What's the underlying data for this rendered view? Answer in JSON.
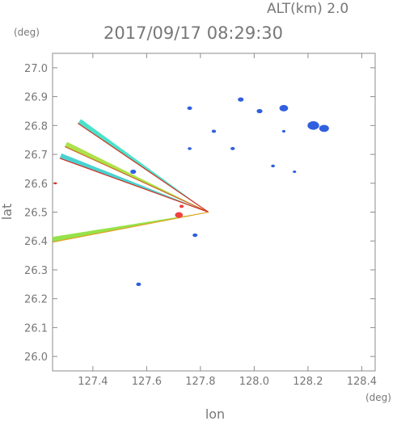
{
  "header": {
    "altitude": "ALT(km) 2.0",
    "timestamp": "2017/09/17 08:29:30",
    "y_unit": "(deg)",
    "x_unit": "(deg)"
  },
  "chart_data": {
    "type": "scatter",
    "xlabel": "lon",
    "ylabel": "lat",
    "xlim": [
      127.25,
      128.45
    ],
    "ylim": [
      25.95,
      27.05
    ],
    "x_ticks": [
      "127.4",
      "127.6",
      "127.8",
      "128.0",
      "128.2",
      "128.4"
    ],
    "x_tick_values": [
      127.4,
      127.6,
      127.8,
      128.0,
      128.2,
      128.4
    ],
    "y_ticks": [
      "27.0",
      "26.9",
      "26.8",
      "26.7",
      "26.6",
      "26.5",
      "26.4",
      "26.3",
      "26.2",
      "26.1",
      "26.0"
    ],
    "y_tick_values": [
      27.0,
      26.9,
      26.8,
      26.7,
      26.6,
      26.5,
      26.4,
      26.3,
      26.2,
      26.1,
      26.0
    ],
    "origin": {
      "lon": 127.83,
      "lat": 26.5
    },
    "beams": [
      {
        "lon": 127.35,
        "lat": 26.815,
        "color": "#40e0c8",
        "edge": "#d03020"
      },
      {
        "lon": 127.3,
        "lat": 26.735,
        "color": "#a8e040",
        "edge": "#d06020"
      },
      {
        "lon": 127.28,
        "lat": 26.695,
        "color": "#40d0d0",
        "edge": "#d03020"
      },
      {
        "lon": 127.25,
        "lat": 26.405,
        "color": "#90e040",
        "edge": "#e0a020"
      }
    ],
    "echo_points": [
      {
        "lon": 127.72,
        "lat": 26.49,
        "color": "#f04040",
        "size": 1.6
      },
      {
        "lon": 127.55,
        "lat": 26.64,
        "color": "#3060e0",
        "size": 1.2
      },
      {
        "lon": 127.78,
        "lat": 26.42,
        "color": "#3060e0",
        "size": 1.0
      },
      {
        "lon": 127.57,
        "lat": 26.25,
        "color": "#3060e0",
        "size": 1.0
      },
      {
        "lon": 127.76,
        "lat": 26.86,
        "color": "#3060e0",
        "size": 1.0
      },
      {
        "lon": 127.95,
        "lat": 26.89,
        "color": "#3060e0",
        "size": 1.2
      },
      {
        "lon": 128.02,
        "lat": 26.85,
        "color": "#3060e0",
        "size": 1.2
      },
      {
        "lon": 128.11,
        "lat": 26.86,
        "color": "#3060e0",
        "size": 1.8
      },
      {
        "lon": 128.22,
        "lat": 26.8,
        "color": "#3060e0",
        "size": 2.4
      },
      {
        "lon": 128.26,
        "lat": 26.79,
        "color": "#3060e0",
        "size": 2.0
      },
      {
        "lon": 127.85,
        "lat": 26.78,
        "color": "#3060e0",
        "size": 0.9
      },
      {
        "lon": 127.92,
        "lat": 26.72,
        "color": "#3060e0",
        "size": 0.9
      },
      {
        "lon": 127.76,
        "lat": 26.72,
        "color": "#3060e0",
        "size": 0.8
      },
      {
        "lon": 128.07,
        "lat": 26.66,
        "color": "#3060e0",
        "size": 0.8
      },
      {
        "lon": 128.15,
        "lat": 26.64,
        "color": "#3060e0",
        "size": 0.7
      },
      {
        "lon": 128.11,
        "lat": 26.78,
        "color": "#3060e0",
        "size": 0.7
      },
      {
        "lon": 127.73,
        "lat": 26.52,
        "color": "#f04040",
        "size": 0.9
      },
      {
        "lon": 127.26,
        "lat": 26.6,
        "color": "#d03020",
        "size": 0.6
      }
    ]
  }
}
